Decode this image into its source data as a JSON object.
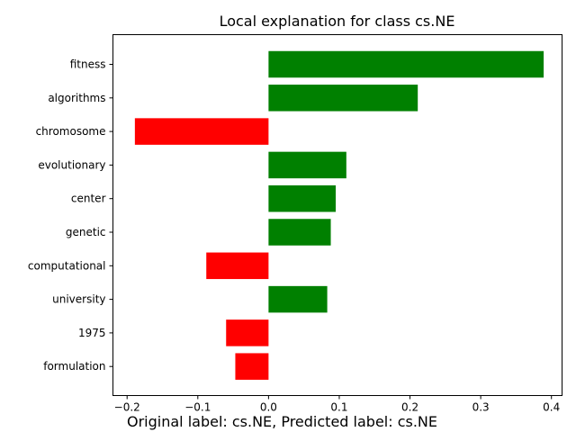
{
  "chart_data": {
    "type": "bar",
    "orientation": "horizontal",
    "title": "Local explanation for class cs.NE",
    "categories": [
      "fitness",
      "algorithms",
      "chromosome",
      "evolutionary",
      "center",
      "genetic",
      "computational",
      "university",
      "1975",
      "formulation"
    ],
    "values": [
      0.389,
      0.211,
      -0.189,
      0.11,
      0.095,
      0.088,
      -0.088,
      0.083,
      -0.06,
      -0.047
    ],
    "xlim": [
      -0.22,
      0.415
    ],
    "xticks": [
      -0.2,
      -0.1,
      0.0,
      0.1,
      0.2,
      0.3,
      0.4
    ],
    "xtick_labels": [
      "−0.2",
      "−0.1",
      "0.0",
      "0.1",
      "0.2",
      "0.3",
      "0.4"
    ],
    "positive_color": "#008000",
    "negative_color": "#ff0000",
    "xlabel": "",
    "ylabel": "",
    "grid": false
  },
  "caption": "Original label: cs.NE, Predicted label: cs.NE"
}
